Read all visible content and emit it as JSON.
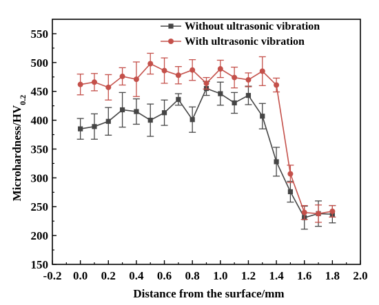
{
  "chart_data": {
    "type": "line",
    "title": "",
    "xlabel": "Distance from the surface/mm",
    "ylabel_main": "Microhardness/HV",
    "ylabel_sub": "0.2",
    "xlim": [
      -0.2,
      2.0
    ],
    "ylim": [
      150,
      575
    ],
    "xticks": [
      "-0.2",
      "0.0",
      "0.2",
      "0.4",
      "0.6",
      "0.8",
      "1.0",
      "1.2",
      "1.4",
      "1.6",
      "1.8",
      "2.0"
    ],
    "yticks": [
      "150",
      "200",
      "250",
      "300",
      "350",
      "400",
      "450",
      "500",
      "550"
    ],
    "legend_position": "top-right",
    "grid": false,
    "series": [
      {
        "name": "Without ultrasonic vibration",
        "color": "#454545",
        "marker": "square",
        "x": [
          0.0,
          0.1,
          0.2,
          0.3,
          0.4,
          0.5,
          0.6,
          0.7,
          0.8,
          0.9,
          1.0,
          1.1,
          1.2,
          1.3,
          1.4,
          1.5,
          1.6,
          1.7,
          1.8
        ],
        "values": [
          385,
          389,
          398,
          418,
          415,
          400,
          413,
          436,
          401,
          455,
          446,
          430,
          443,
          407,
          328,
          276,
          231,
          238,
          237
        ],
        "errors": [
          18,
          22,
          24,
          30,
          22,
          28,
          22,
          10,
          22,
          12,
          20,
          18,
          16,
          22,
          25,
          18,
          20,
          22,
          15
        ]
      },
      {
        "name": "With ultrasonic vibration",
        "color": "#c4504a",
        "marker": "circle",
        "x": [
          0.0,
          0.1,
          0.2,
          0.3,
          0.4,
          0.5,
          0.6,
          0.7,
          0.8,
          0.9,
          1.0,
          1.1,
          1.2,
          1.3,
          1.4,
          1.5,
          1.6,
          1.7,
          1.8
        ],
        "values": [
          462,
          466,
          457,
          476,
          471,
          498,
          486,
          478,
          487,
          464,
          489,
          474,
          470,
          485,
          461,
          307,
          240,
          238,
          242
        ],
        "errors": [
          18,
          15,
          22,
          15,
          30,
          18,
          22,
          15,
          18,
          10,
          15,
          18,
          12,
          25,
          12,
          15,
          12,
          15,
          10
        ]
      }
    ]
  }
}
